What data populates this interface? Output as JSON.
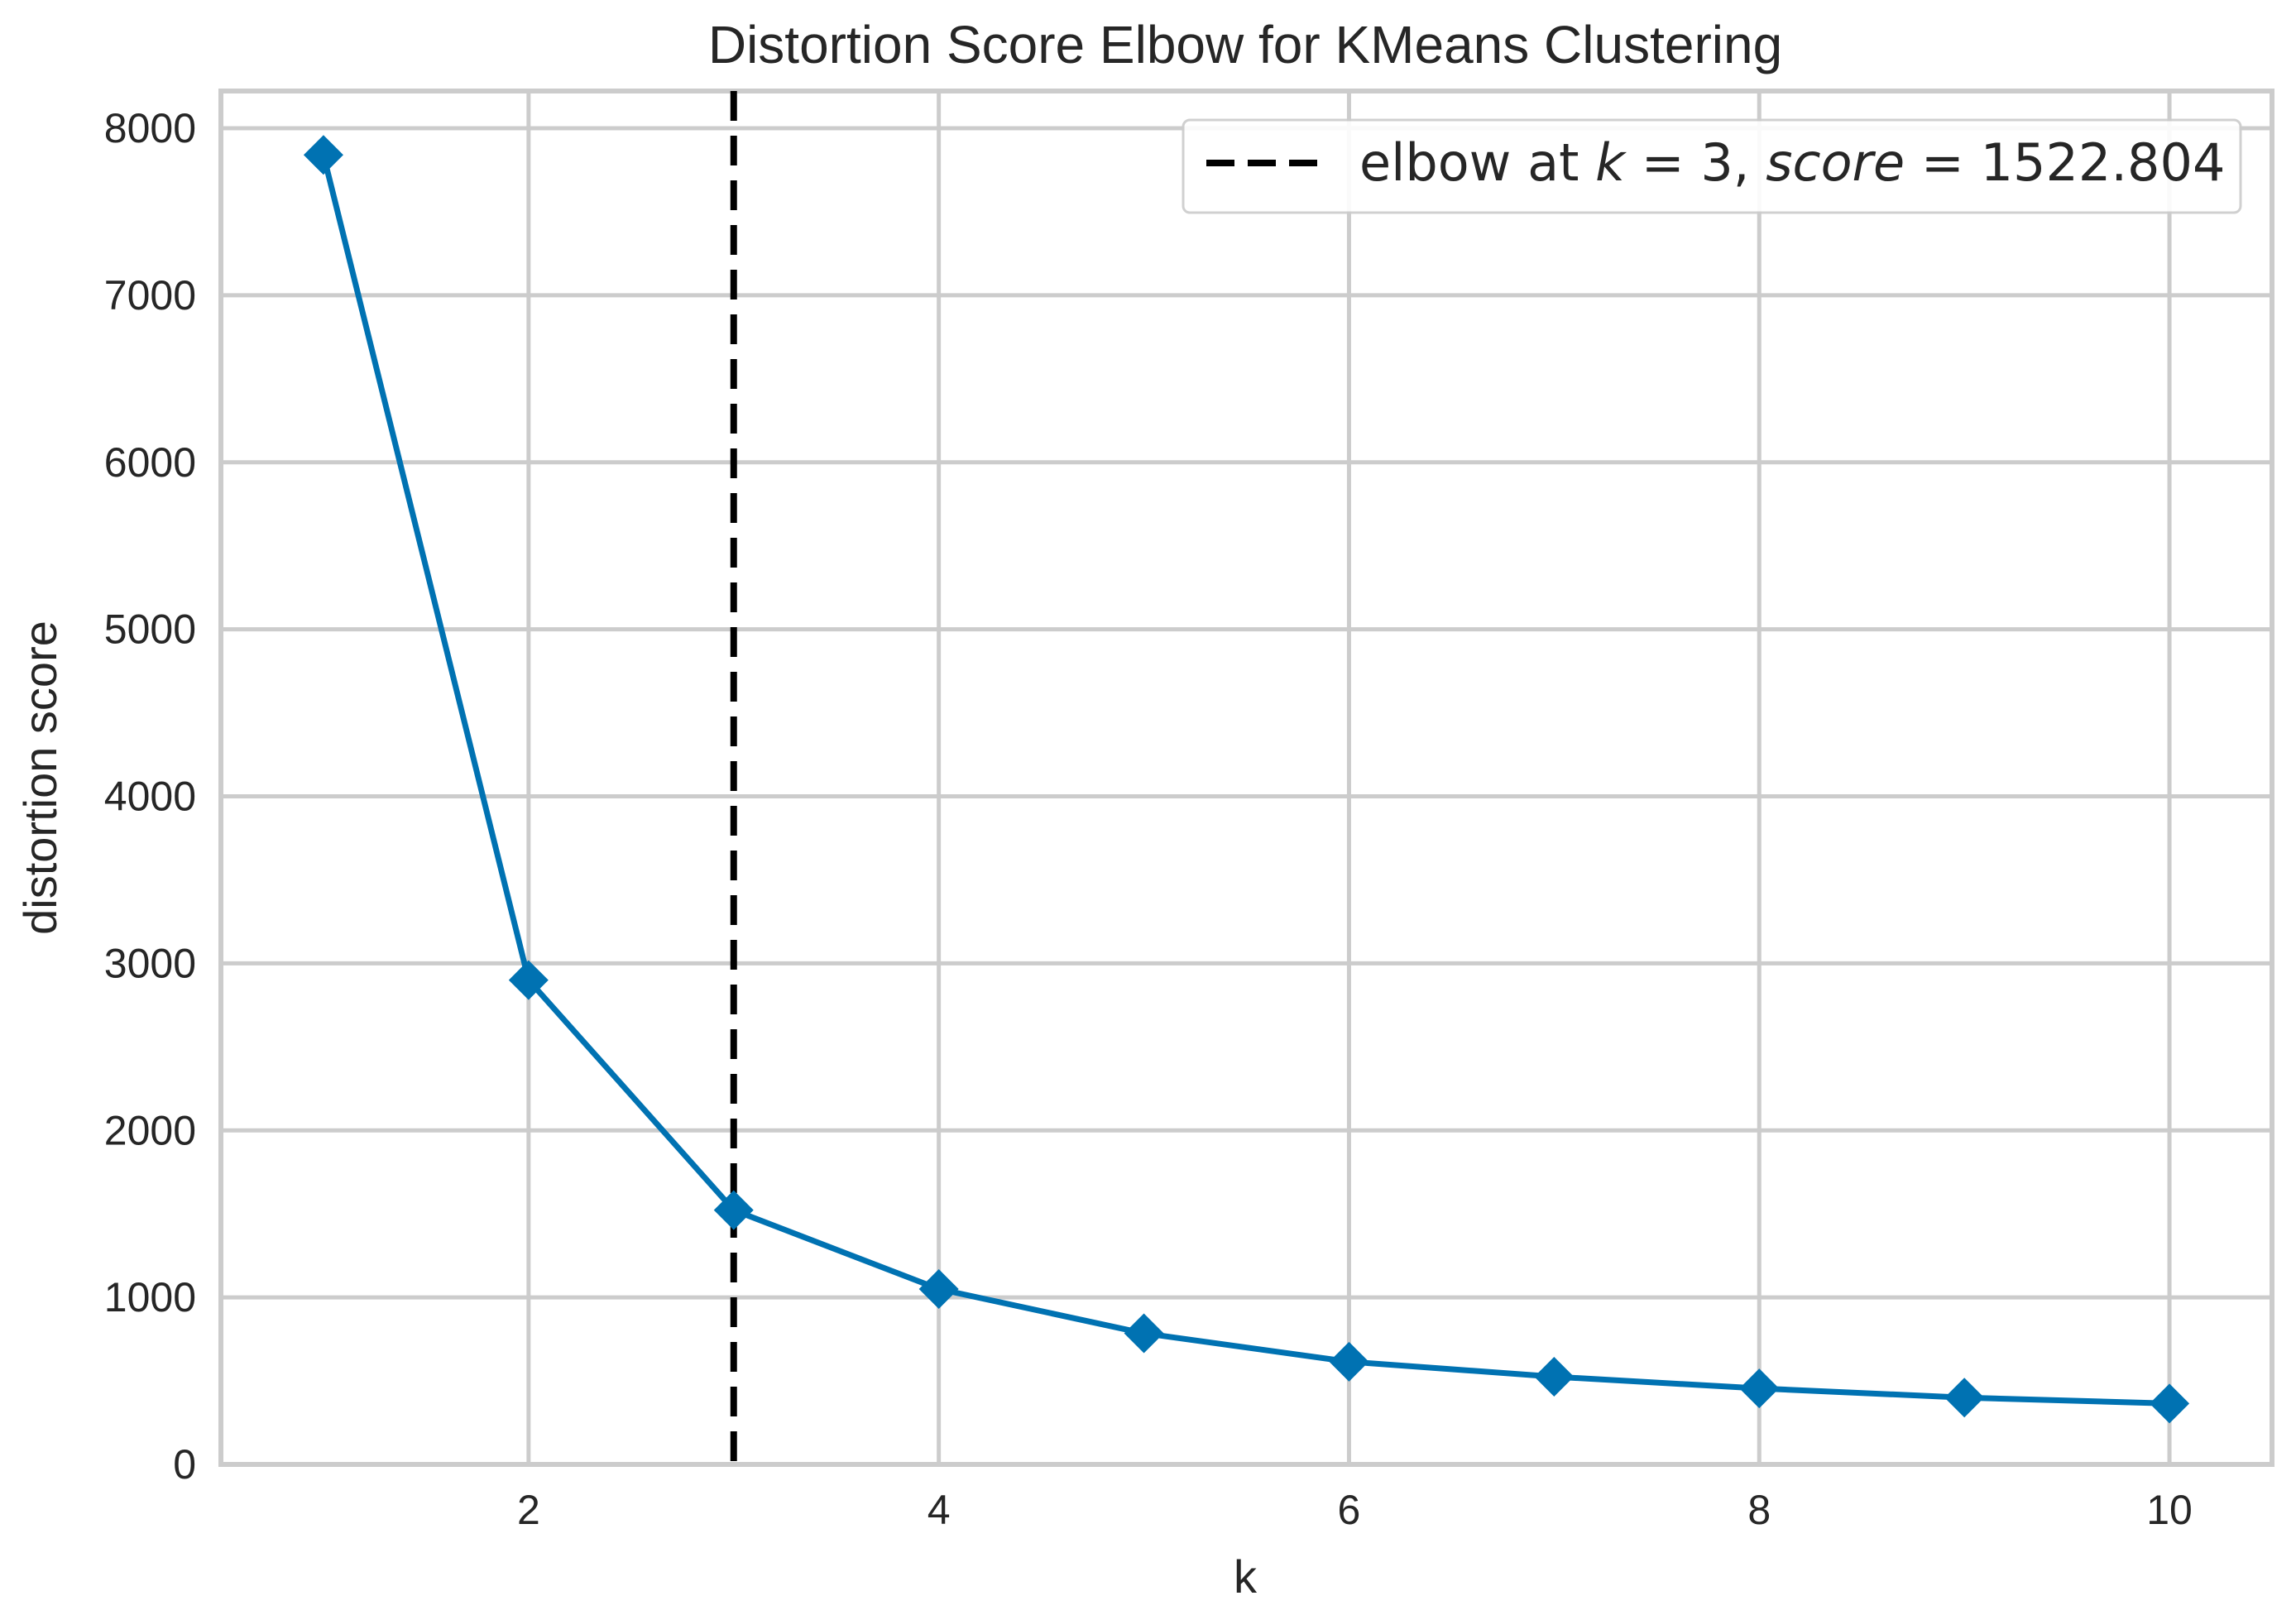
{
  "chart_data": {
    "type": "line",
    "title": "Distortion Score Elbow for KMeans Clustering",
    "xlabel": "k",
    "ylabel": "distortion score",
    "xlim": [
      0.5,
      10.5
    ],
    "ylim": [
      0,
      8100
    ],
    "x_ticks": [
      2,
      4,
      6,
      8,
      10
    ],
    "y_ticks": [
      0,
      1000,
      2000,
      3000,
      4000,
      5000,
      6000,
      7000,
      8000
    ],
    "grid": true,
    "series": [
      {
        "color": "#0072B2",
        "marker": "diamond",
        "x": [
          1,
          2,
          3,
          4,
          5,
          6,
          7,
          8,
          9,
          10
        ],
        "values": [
          7840,
          2900,
          1522.804,
          1050,
          785,
          615,
          525,
          455,
          400,
          365
        ]
      }
    ],
    "elbow": {
      "k": 3,
      "score": 1522.804,
      "line_style": "dashed",
      "color": "#000000"
    },
    "legend": {
      "placement": "top-right",
      "parts": [
        "elbow at ",
        "k",
        " = 3, ",
        "score",
        " = 1522.804"
      ]
    }
  }
}
